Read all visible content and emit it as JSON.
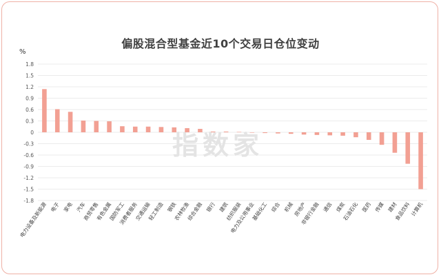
{
  "title": "偏股混合型基金近10个交易日仓位变动",
  "unit_label": "%",
  "watermark": "指数家",
  "colors": {
    "bar": "#f2a093",
    "grid": "#e4e4e4",
    "border": "#efb0a5"
  },
  "chart_data": {
    "type": "bar",
    "title": "偏股混合型基金近10个交易日仓位变动",
    "ylabel": "%",
    "ylim": [
      -1.8,
      1.8
    ],
    "yticks": [
      1.8,
      1.5,
      1.2,
      0.9,
      0.6,
      0.3,
      0,
      -0.3,
      -0.6,
      -0.9,
      -1.2,
      -1.5,
      -1.8
    ],
    "grid": true,
    "categories": [
      "电力设备及新能源",
      "电子",
      "家电",
      "汽车",
      "商贸零售",
      "有色金属",
      "国防军工",
      "消费者服务",
      "交通运输",
      "轻工制造",
      "钢铁",
      "农林牧渔",
      "综合金融",
      "银行",
      "建筑",
      "纺织服装",
      "电力及公用事业",
      "基础化工",
      "综合",
      "机械",
      "房地产",
      "非银行金融",
      "通信",
      "煤炭",
      "石油石化",
      "医药",
      "传媒",
      "建材",
      "食品饮料",
      "计算机"
    ],
    "values": [
      1.14,
      0.61,
      0.54,
      0.31,
      0.3,
      0.29,
      0.16,
      0.15,
      0.15,
      0.14,
      0.13,
      0.11,
      0.09,
      0.02,
      0.02,
      0.01,
      0.0,
      -0.02,
      -0.03,
      -0.04,
      -0.06,
      -0.07,
      -0.08,
      -0.09,
      -0.13,
      -0.2,
      -0.33,
      -0.54,
      -0.83,
      -1.5
    ]
  }
}
